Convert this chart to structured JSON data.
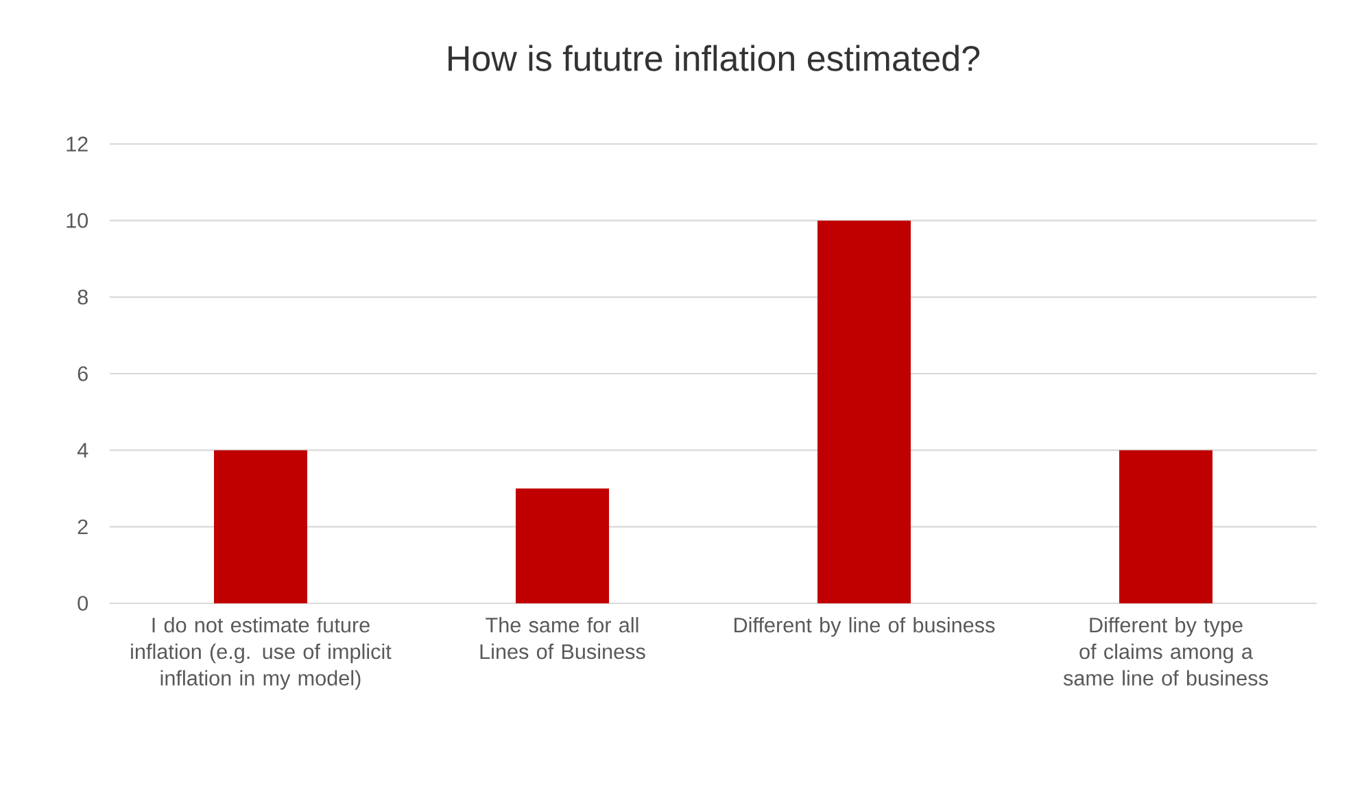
{
  "chart_data": {
    "type": "bar",
    "title": "How is fututre inflation estimated?",
    "categories": [
      "I do not estimate future inflation (e.g. use of implicit inflation in my model)",
      "The same for all Lines of Business",
      "Different by line of business",
      "Different by type of claims among a same line of business"
    ],
    "values": [
      4,
      3,
      10,
      4
    ],
    "color": "#c00000",
    "ylim": [
      0,
      12
    ],
    "yticks": [
      0,
      2,
      4,
      6,
      8,
      10,
      12
    ],
    "grid": "y"
  }
}
